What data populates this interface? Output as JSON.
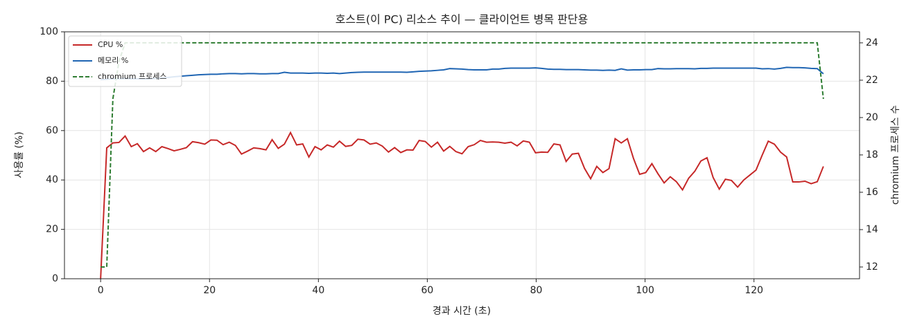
{
  "chart_data": {
    "type": "line",
    "title": "호스트(이 PC) 리소스 추이 — 클라이언트 병목 판단용",
    "x_label": "경과 시간 (초)",
    "y_label": "사용률 (%)",
    "y2_label": "chromium 프로세스 수",
    "x": [
      0,
      1.125,
      2.25,
      3.375,
      4.5,
      5.625,
      6.75,
      7.875,
      9,
      10.125,
      11.25,
      12.375,
      13.5,
      14.625,
      15.75,
      16.875,
      18,
      19.125,
      20.25,
      21.375,
      22.5,
      23.625,
      24.75,
      25.875,
      27,
      28.125,
      29.25,
      30.375,
      31.5,
      32.625,
      33.75,
      34.875,
      36,
      37.125,
      38.25,
      39.375,
      40.5,
      41.625,
      42.75,
      43.875,
      45,
      46.125,
      47.25,
      48.375,
      49.5,
      50.625,
      51.75,
      52.875,
      54,
      55.125,
      56.25,
      57.375,
      58.5,
      59.625,
      60.75,
      61.875,
      63,
      64.125,
      65.25,
      66.375,
      67.5,
      68.625,
      69.75,
      70.875,
      72,
      73.125,
      74.25,
      75.375,
      76.5,
      77.625,
      78.75,
      79.875,
      81,
      82.125,
      83.25,
      84.375,
      85.5,
      86.625,
      87.75,
      88.875,
      90,
      91.125,
      92.25,
      93.375,
      94.5,
      95.625,
      96.75,
      97.875,
      99,
      100.125,
      101.25,
      102.375,
      103.5,
      104.625,
      105.75,
      106.875,
      108,
      109.125,
      110.25,
      111.375,
      112.5,
      113.625,
      114.75,
      115.875,
      117,
      118.125,
      119.25,
      120.375,
      121.5,
      122.625,
      123.75,
      124.875,
      126,
      127.125,
      128.25,
      129.375,
      130.5,
      131.625,
      132.75
    ],
    "series": [
      {
        "name": "CPU %",
        "color": "#c62828",
        "axis": "y",
        "dash": false,
        "values": [
          0,
          53,
          55,
          55.2,
          57.8,
          53.5,
          54.7,
          51.5,
          53,
          51.5,
          53.5,
          52.7,
          51.8,
          52.4,
          53.1,
          55.5,
          55.1,
          54.5,
          56.2,
          56.1,
          54.3,
          55.3,
          54,
          50.5,
          51.7,
          53,
          52.7,
          52.2,
          56.3,
          52.8,
          54.5,
          59.2,
          54.2,
          54.6,
          49.3,
          53.5,
          52.2,
          54.2,
          53.3,
          55.7,
          53.6,
          54,
          56.5,
          56.2,
          54.5,
          55,
          53.7,
          51.3,
          53.1,
          51.1,
          52.2,
          52.1,
          56,
          55.6,
          53.3,
          55.3,
          51.7,
          53.6,
          51.5,
          50.6,
          53.5,
          54.3,
          56,
          55.3,
          55.4,
          55.3,
          54.9,
          55.3,
          53.8,
          55.8,
          55.3,
          51,
          51.3,
          51.2,
          54.6,
          54.2,
          47.5,
          50.5,
          50.8,
          44.7,
          40.5,
          45.5,
          43,
          44.6,
          56.7,
          55,
          56.7,
          48.7,
          42.3,
          43,
          46.6,
          42.5,
          38.8,
          41.3,
          39.3,
          36,
          40.7,
          43.5,
          47.7,
          49,
          41,
          36.3,
          40.3,
          39.8,
          37.1,
          40,
          42,
          44,
          50,
          55.7,
          54.5,
          51.3,
          49.3,
          39.2,
          39.2,
          39.5,
          38.5,
          39.3,
          45.5
        ]
      },
      {
        "name": "메모리 %",
        "color": "#1f65b3",
        "axis": "y",
        "dash": false,
        "values": [
          80.6,
          80.8,
          81,
          81,
          81.1,
          81,
          81,
          80.9,
          81,
          81.1,
          81.3,
          81.5,
          81.8,
          82,
          82.2,
          82.4,
          82.6,
          82.7,
          82.8,
          82.8,
          83,
          83.1,
          83.1,
          83,
          83.1,
          83.1,
          83,
          83,
          83.1,
          83.1,
          83.6,
          83.3,
          83.3,
          83.3,
          83.2,
          83.3,
          83.3,
          83.2,
          83.3,
          83.1,
          83.3,
          83.5,
          83.6,
          83.7,
          83.7,
          83.7,
          83.7,
          83.7,
          83.7,
          83.7,
          83.6,
          83.8,
          84,
          84.1,
          84.2,
          84.4,
          84.6,
          85.1,
          85,
          84.9,
          84.7,
          84.6,
          84.6,
          84.6,
          84.9,
          84.9,
          85.2,
          85.3,
          85.3,
          85.3,
          85.3,
          85.4,
          85.2,
          84.9,
          84.8,
          84.8,
          84.7,
          84.7,
          84.7,
          84.6,
          84.5,
          84.5,
          84.4,
          84.5,
          84.4,
          85,
          84.5,
          84.6,
          84.6,
          84.7,
          84.7,
          85.1,
          85,
          85,
          85.1,
          85.1,
          85.1,
          85,
          85.2,
          85.2,
          85.3,
          85.3,
          85.3,
          85.3,
          85.3,
          85.3,
          85.3,
          85.3,
          85,
          85.1,
          84.9,
          85.2,
          85.6,
          85.5,
          85.5,
          85.4,
          85.2,
          85.1,
          83
        ]
      },
      {
        "name": "chromium 프로세스",
        "color": "#2e7d32",
        "axis": "y2",
        "dash": true,
        "values": [
          12,
          12,
          21,
          23,
          24,
          24,
          24,
          24,
          24,
          24,
          24,
          24,
          24,
          24,
          24,
          24,
          24,
          24,
          24,
          24,
          24,
          24,
          24,
          24,
          24,
          24,
          24,
          24,
          24,
          24,
          24,
          24,
          24,
          24,
          24,
          24,
          24,
          24,
          24,
          24,
          24,
          24,
          24,
          24,
          24,
          24,
          24,
          24,
          24,
          24,
          24,
          24,
          24,
          24,
          24,
          24,
          24,
          24,
          24,
          24,
          24,
          24,
          24,
          24,
          24,
          24,
          24,
          24,
          24,
          24,
          24,
          24,
          24,
          24,
          24,
          24,
          24,
          24,
          24,
          24,
          24,
          24,
          24,
          24,
          24,
          24,
          24,
          24,
          24,
          24,
          24,
          24,
          24,
          24,
          24,
          24,
          24,
          24,
          24,
          24,
          24,
          24,
          24,
          24,
          24,
          24,
          24,
          24,
          24,
          24,
          24,
          24,
          24,
          24,
          24,
          24,
          24,
          24,
          21
        ]
      }
    ],
    "xlim": [
      -6.64,
      139.39
    ],
    "xticks": [
      0,
      20,
      40,
      60,
      80,
      100,
      120
    ],
    "ylim": [
      0,
      100
    ],
    "yticks": [
      0,
      20,
      40,
      60,
      80,
      100
    ],
    "y2lim": [
      11.37,
      24.59
    ],
    "y2ticks": [
      12,
      14,
      16,
      18,
      20,
      22,
      24
    ],
    "grid": true,
    "legend": "upper left"
  }
}
